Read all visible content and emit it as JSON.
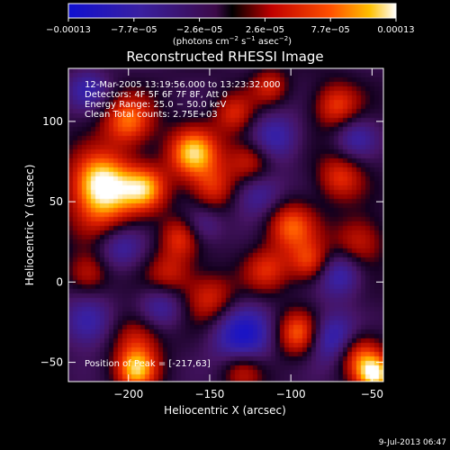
{
  "chart_data": {
    "type": "heatmap",
    "title": "Reconstructed RHESSI Image",
    "xlabel": "Heliocentric X (arcsec)",
    "ylabel": "Heliocentric Y (arcsec)",
    "xlim": [
      -237,
      -43
    ],
    "ylim": [
      -62,
      133
    ],
    "x_ticks": [
      -200,
      -150,
      -100,
      -50
    ],
    "y_ticks": [
      -50,
      0,
      50,
      100
    ],
    "x_tick_labels": [
      "−200",
      "−150",
      "−100",
      "−50"
    ],
    "y_tick_labels": [
      "−50",
      "0",
      "50",
      "100"
    ],
    "annotations": [
      "12-Mar-2005 13:19:56.000 to 13:23:32.000",
      "Detectors: 4F 5F 6F 7F 8F, Att 0",
      "Energy Range: 25.0 − 50.0 keV",
      "Clean    Total counts: 2.75E+03"
    ],
    "peak_label": "Position of Peak = [-217,63]",
    "peak_position": [
      -217,
      63
    ],
    "colorbar": {
      "range": [
        -0.00013,
        0.00013
      ],
      "tick_labels": [
        "−0.00013",
        "−7.7e−05",
        "−2.6e−05",
        "2.6e−05",
        "7.7e−05",
        "0.00013"
      ],
      "unit_parts": [
        "(photons cm",
        "−2",
        " s",
        "−1",
        " asec",
        "−2",
        ")"
      ]
    },
    "hotspots": [
      {
        "x": -217,
        "y": 63,
        "v": 1.0,
        "r": 13
      },
      {
        "x": -200,
        "y": 100,
        "v": 0.75,
        "r": 11
      },
      {
        "x": -190,
        "y": 58,
        "v": 0.8,
        "r": 10
      },
      {
        "x": -160,
        "y": 80,
        "v": 0.95,
        "r": 11
      },
      {
        "x": -215,
        "y": 45,
        "v": 0.5,
        "r": 14
      },
      {
        "x": -168,
        "y": 28,
        "v": 0.55,
        "r": 9
      },
      {
        "x": -148,
        "y": 58,
        "v": 0.55,
        "r": 10
      },
      {
        "x": -125,
        "y": 75,
        "v": 0.55,
        "r": 10
      },
      {
        "x": -135,
        "y": 105,
        "v": 0.5,
        "r": 9
      },
      {
        "x": -72,
        "y": 110,
        "v": 0.6,
        "r": 10
      },
      {
        "x": -70,
        "y": 65,
        "v": 0.55,
        "r": 10
      },
      {
        "x": -58,
        "y": 25,
        "v": 0.5,
        "r": 11
      },
      {
        "x": -100,
        "y": 35,
        "v": 0.7,
        "r": 11
      },
      {
        "x": -88,
        "y": 12,
        "v": 0.6,
        "r": 9
      },
      {
        "x": -175,
        "y": 5,
        "v": 0.45,
        "r": 10
      },
      {
        "x": -150,
        "y": -10,
        "v": 0.55,
        "r": 11
      },
      {
        "x": -115,
        "y": 8,
        "v": 0.5,
        "r": 10
      },
      {
        "x": -95,
        "y": -32,
        "v": 0.75,
        "r": 10
      },
      {
        "x": -195,
        "y": -35,
        "v": 0.5,
        "r": 11
      },
      {
        "x": -195,
        "y": -55,
        "v": 0.85,
        "r": 9
      },
      {
        "x": -58,
        "y": -45,
        "v": 0.65,
        "r": 10
      },
      {
        "x": -48,
        "y": -58,
        "v": 0.95,
        "r": 8
      },
      {
        "x": -130,
        "y": -55,
        "v": 0.45,
        "r": 9
      },
      {
        "x": -225,
        "y": 5,
        "v": 0.45,
        "r": 9
      },
      {
        "x": -113,
        "y": 122,
        "v": 0.45,
        "r": 8
      }
    ],
    "coldspots": [
      {
        "x": -130,
        "y": -33,
        "v": -0.75,
        "r": 13
      },
      {
        "x": -75,
        "y": -35,
        "v": -0.7,
        "r": 11
      },
      {
        "x": -225,
        "y": -25,
        "v": -0.55,
        "r": 11
      },
      {
        "x": -205,
        "y": 22,
        "v": -0.45,
        "r": 10
      },
      {
        "x": -120,
        "y": 55,
        "v": -0.5,
        "r": 11
      },
      {
        "x": -180,
        "y": -15,
        "v": -0.45,
        "r": 10
      },
      {
        "x": -70,
        "y": 5,
        "v": -0.55,
        "r": 10
      },
      {
        "x": -110,
        "y": 90,
        "v": -0.5,
        "r": 11
      },
      {
        "x": -225,
        "y": 120,
        "v": -0.45,
        "r": 9
      },
      {
        "x": -155,
        "y": 35,
        "v": -0.4,
        "r": 9
      },
      {
        "x": -60,
        "y": 90,
        "v": -0.4,
        "r": 9
      }
    ]
  },
  "footer": {
    "timestamp": "9-Jul-2013 06:47"
  }
}
